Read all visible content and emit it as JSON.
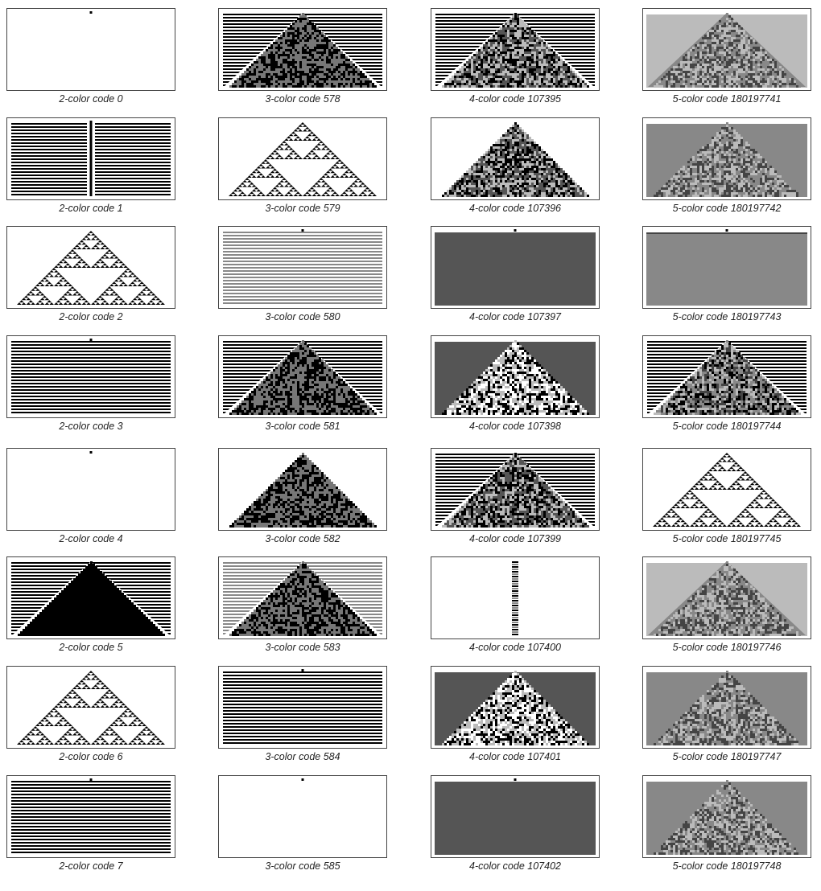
{
  "figure": {
    "columns": [
      {
        "colors": 2,
        "palette": [
          "#ffffff",
          "#000000"
        ],
        "panels": [
          {
            "label": "2-color code 0",
            "rule": 0,
            "pattern": "dot"
          },
          {
            "label": "2-color code 1",
            "rule": 1,
            "pattern": "stripes-gap"
          },
          {
            "label": "2-color code 2",
            "rule": 2,
            "pattern": "sierpinski"
          },
          {
            "label": "2-color code 3",
            "rule": 3,
            "pattern": "stripes"
          },
          {
            "label": "2-color code 4",
            "rule": 4,
            "pattern": "dot"
          },
          {
            "label": "2-color code 5",
            "rule": 5,
            "pattern": "stripes-triangle"
          },
          {
            "label": "2-color code 6",
            "rule": 6,
            "pattern": "sierpinski"
          },
          {
            "label": "2-color code 7",
            "rule": 7,
            "pattern": "stripes"
          }
        ]
      },
      {
        "colors": 3,
        "palette": [
          "#ffffff",
          "#777777",
          "#000000"
        ],
        "panels": [
          {
            "label": "3-color code 578",
            "rule": 578,
            "pattern": "stripes-triangle"
          },
          {
            "label": "3-color code 579",
            "rule": 579,
            "pattern": "sierpinski"
          },
          {
            "label": "3-color code 580",
            "rule": 580,
            "pattern": "stripes-light"
          },
          {
            "label": "3-color code 581",
            "rule": 581,
            "pattern": "stripes-triangle"
          },
          {
            "label": "3-color code 582",
            "rule": 582,
            "pattern": "triangle"
          },
          {
            "label": "3-color code 583",
            "rule": 583,
            "pattern": "stripes-light-triangle"
          },
          {
            "label": "3-color code 584",
            "rule": 584,
            "pattern": "stripes"
          },
          {
            "label": "3-color code 585",
            "rule": 585,
            "pattern": "dot"
          }
        ]
      },
      {
        "colors": 4,
        "palette": [
          "#ffffff",
          "#bbbbbb",
          "#555555",
          "#000000"
        ],
        "panels": [
          {
            "label": "4-color code 107395",
            "rule": 107395,
            "pattern": "stripes-triangle"
          },
          {
            "label": "4-color code 107396",
            "rule": 107396,
            "pattern": "triangle"
          },
          {
            "label": "4-color code 107397",
            "rule": 107397,
            "pattern": "solid-dark"
          },
          {
            "label": "4-color code 107398",
            "rule": 107398,
            "pattern": "dark-triangle"
          },
          {
            "label": "4-color code 107399",
            "rule": 107399,
            "pattern": "stripes-triangle"
          },
          {
            "label": "4-color code 107400",
            "rule": 107400,
            "pattern": "column"
          },
          {
            "label": "4-color code 107401",
            "rule": 107401,
            "pattern": "dark-triangle"
          },
          {
            "label": "4-color code 107402",
            "rule": 107402,
            "pattern": "solid-dark"
          }
        ]
      },
      {
        "colors": 5,
        "palette": [
          "#ffffff",
          "#bbbbbb",
          "#888888",
          "#444444",
          "#000000"
        ],
        "panels": [
          {
            "label": "5-color code 180197741",
            "rule": 180197741,
            "pattern": "light-triangle"
          },
          {
            "label": "5-color code 180197742",
            "rule": 180197742,
            "pattern": "mid-triangle"
          },
          {
            "label": "5-color code 180197743",
            "rule": 180197743,
            "pattern": "solid-mid"
          },
          {
            "label": "5-color code 180197744",
            "rule": 180197744,
            "pattern": "stripes-triangle"
          },
          {
            "label": "5-color code 180197745",
            "rule": 180197745,
            "pattern": "sierpinski"
          },
          {
            "label": "5-color code 180197746",
            "rule": 180197746,
            "pattern": "light-triangle"
          },
          {
            "label": "5-color code 180197747",
            "rule": 180197747,
            "pattern": "mid-triangle"
          },
          {
            "label": "5-color code 180197748",
            "rule": 180197748,
            "pattern": "mid-triangle"
          }
        ]
      }
    ]
  }
}
